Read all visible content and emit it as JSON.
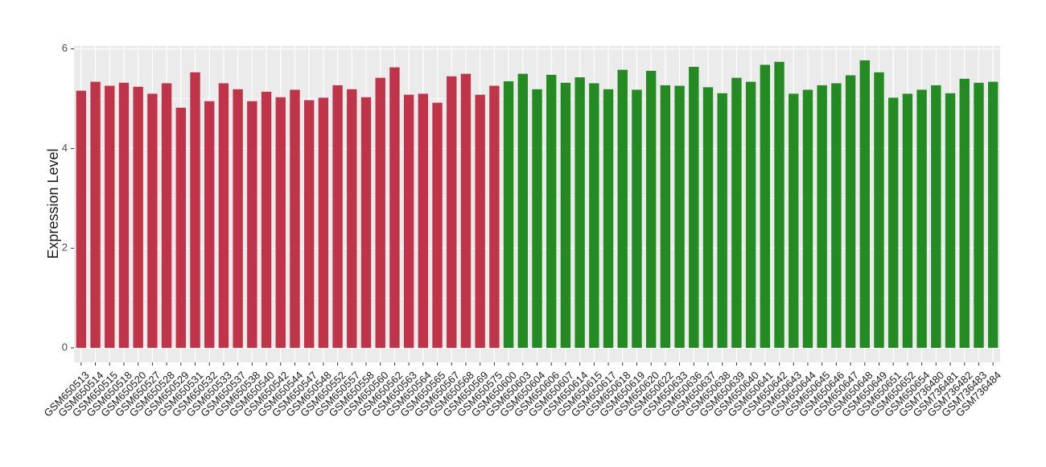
{
  "chart_data": {
    "type": "bar",
    "ylabel": "Expression Level",
    "categories": [
      "GSM650513",
      "GSM650514",
      "GSM650515",
      "GSM650518",
      "GSM650520",
      "GSM650527",
      "GSM650528",
      "GSM650529",
      "GSM650531",
      "GSM650532",
      "GSM650533",
      "GSM650537",
      "GSM650538",
      "GSM650540",
      "GSM650542",
      "GSM650544",
      "GSM650547",
      "GSM650548",
      "GSM650552",
      "GSM650557",
      "GSM650558",
      "GSM650560",
      "GSM650562",
      "GSM650563",
      "GSM650564",
      "GSM650565",
      "GSM650567",
      "GSM650568",
      "GSM650569",
      "GSM650575",
      "GSM650600",
      "GSM650603",
      "GSM650604",
      "GSM650606",
      "GSM650607",
      "GSM650614",
      "GSM650615",
      "GSM650617",
      "GSM650618",
      "GSM650619",
      "GSM650620",
      "GSM650622",
      "GSM650633",
      "GSM650636",
      "GSM650637",
      "GSM650638",
      "GSM650639",
      "GSM650640",
      "GSM650641",
      "GSM650642",
      "GSM650643",
      "GSM650644",
      "GSM650645",
      "GSM650646",
      "GSM650647",
      "GSM650648",
      "GSM650649",
      "GSM650651",
      "GSM650652",
      "GSM650654",
      "GSM736480",
      "GSM736481",
      "GSM736482",
      "GSM736483",
      "GSM736484"
    ],
    "values": [
      5.16,
      5.34,
      5.26,
      5.32,
      5.24,
      5.1,
      5.31,
      4.82,
      5.53,
      4.95,
      5.31,
      5.19,
      4.95,
      5.14,
      5.03,
      5.18,
      4.97,
      5.02,
      5.27,
      5.19,
      5.03,
      5.42,
      5.63,
      5.08,
      5.1,
      4.92,
      5.45,
      5.5,
      5.08,
      5.26,
      5.35,
      5.5,
      5.19,
      5.48,
      5.32,
      5.43,
      5.31,
      5.19,
      5.58,
      5.18,
      5.56,
      5.27,
      5.26,
      5.64,
      5.23,
      5.11,
      5.42,
      5.34,
      5.68,
      5.74,
      5.1,
      5.18,
      5.27,
      5.31,
      5.47,
      5.77,
      5.53,
      5.02,
      5.1,
      5.18,
      5.27,
      5.11,
      5.4,
      5.32,
      5.34
    ],
    "colors": [
      "#c0344a",
      "#c0344a",
      "#c0344a",
      "#c0344a",
      "#c0344a",
      "#c0344a",
      "#c0344a",
      "#c0344a",
      "#c0344a",
      "#c0344a",
      "#c0344a",
      "#c0344a",
      "#c0344a",
      "#c0344a",
      "#c0344a",
      "#c0344a",
      "#c0344a",
      "#c0344a",
      "#c0344a",
      "#c0344a",
      "#c0344a",
      "#c0344a",
      "#c0344a",
      "#c0344a",
      "#c0344a",
      "#c0344a",
      "#c0344a",
      "#c0344a",
      "#c0344a",
      "#c0344a",
      "#238b22",
      "#238b22",
      "#238b22",
      "#238b22",
      "#238b22",
      "#238b22",
      "#238b22",
      "#238b22",
      "#238b22",
      "#238b22",
      "#238b22",
      "#238b22",
      "#238b22",
      "#238b22",
      "#238b22",
      "#238b22",
      "#238b22",
      "#238b22",
      "#238b22",
      "#238b22",
      "#238b22",
      "#238b22",
      "#238b22",
      "#238b22",
      "#238b22",
      "#238b22",
      "#238b22",
      "#238b22",
      "#238b22",
      "#238b22",
      "#238b22",
      "#238b22",
      "#238b22",
      "#238b22",
      "#238b22"
    ],
    "ylim": [
      -0.29,
      6.06
    ],
    "yticks": [
      0,
      2,
      4,
      6
    ],
    "grid": true
  }
}
